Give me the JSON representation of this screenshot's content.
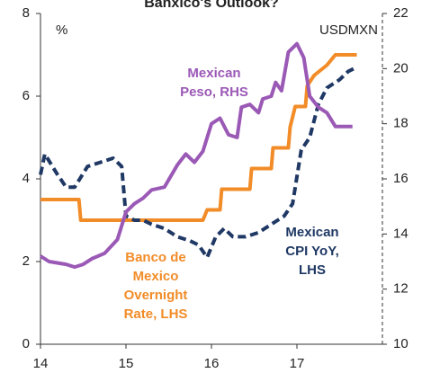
{
  "chart_data": {
    "type": "line",
    "title": "Banxico's Outlook?",
    "y_unit": "%",
    "y2_unit": "USDMXN",
    "xlim": [
      14,
      18.0
    ],
    "xticks": [
      14,
      15,
      16,
      17
    ],
    "ylim": [
      0,
      8
    ],
    "yticks": [
      0,
      2,
      4,
      6,
      8
    ],
    "y2lim": [
      10,
      22
    ],
    "y2ticks": [
      10,
      12,
      14,
      16,
      18,
      20,
      22
    ],
    "series": [
      {
        "color": "#f28c28",
        "dash": false,
        "x": [
          14.0,
          14.45,
          14.47,
          15.9,
          15.95,
          16.1,
          16.12,
          16.45,
          16.47,
          16.7,
          16.72,
          16.9,
          16.92,
          16.98,
          17.1,
          17.12,
          17.2,
          17.35,
          17.45,
          17.7
        ],
        "values": [
          3.5,
          3.5,
          3.0,
          3.0,
          3.25,
          3.25,
          3.75,
          3.75,
          4.25,
          4.25,
          4.75,
          4.75,
          5.25,
          5.75,
          5.75,
          6.25,
          6.5,
          6.75,
          7.0,
          7.0
        ]
      },
      {
        "color": "#1f3864",
        "dash": true,
        "x": [
          14.0,
          14.05,
          14.2,
          14.3,
          14.4,
          14.55,
          14.7,
          14.85,
          14.95,
          15.0,
          15.1,
          15.2,
          15.3,
          15.45,
          15.6,
          15.75,
          15.85,
          15.95,
          16.05,
          16.15,
          16.25,
          16.4,
          16.55,
          16.7,
          16.85,
          16.95,
          17.05,
          17.15,
          17.25,
          17.35,
          17.5,
          17.6,
          17.7
        ],
        "values": [
          4.1,
          4.6,
          4.1,
          3.8,
          3.8,
          4.3,
          4.4,
          4.5,
          4.3,
          3.1,
          3.0,
          3.0,
          2.9,
          2.8,
          2.6,
          2.5,
          2.4,
          2.1,
          2.6,
          2.8,
          2.6,
          2.6,
          2.7,
          2.9,
          3.1,
          3.4,
          4.7,
          5.0,
          5.8,
          6.2,
          6.4,
          6.6,
          6.7
        ]
      },
      {
        "color": "#9b59b6",
        "dash": false,
        "axis": "y2",
        "x": [
          14.0,
          14.1,
          14.3,
          14.4,
          14.5,
          14.6,
          14.75,
          14.9,
          15.0,
          15.1,
          15.2,
          15.3,
          15.45,
          15.6,
          15.7,
          15.8,
          15.9,
          16.0,
          16.1,
          16.2,
          16.3,
          16.35,
          16.45,
          16.55,
          16.6,
          16.7,
          16.75,
          16.82,
          16.9,
          17.0,
          17.08,
          17.15,
          17.25,
          17.35,
          17.45,
          17.55,
          17.65
        ],
        "values": [
          13.2,
          13.0,
          12.9,
          12.8,
          12.9,
          13.1,
          13.3,
          13.8,
          14.8,
          15.1,
          15.3,
          15.6,
          15.7,
          16.5,
          16.9,
          16.6,
          17.0,
          18.0,
          18.2,
          17.6,
          17.5,
          18.6,
          18.7,
          18.4,
          18.9,
          19.0,
          19.5,
          19.2,
          20.6,
          20.9,
          20.4,
          19.0,
          18.6,
          18.4,
          17.9,
          17.9,
          17.9
        ]
      }
    ],
    "annotations": [
      {
        "lines": [
          "Mexican",
          "Peso, RHS"
        ],
        "color": "#9b59b6"
      },
      {
        "lines": [
          "Banco de",
          "Mexico",
          "Overnight",
          "Rate, LHS"
        ],
        "color": "#f28c28"
      },
      {
        "lines": [
          "Mexican",
          "CPI YoY,",
          "LHS"
        ],
        "color": "#1f3864"
      }
    ]
  }
}
